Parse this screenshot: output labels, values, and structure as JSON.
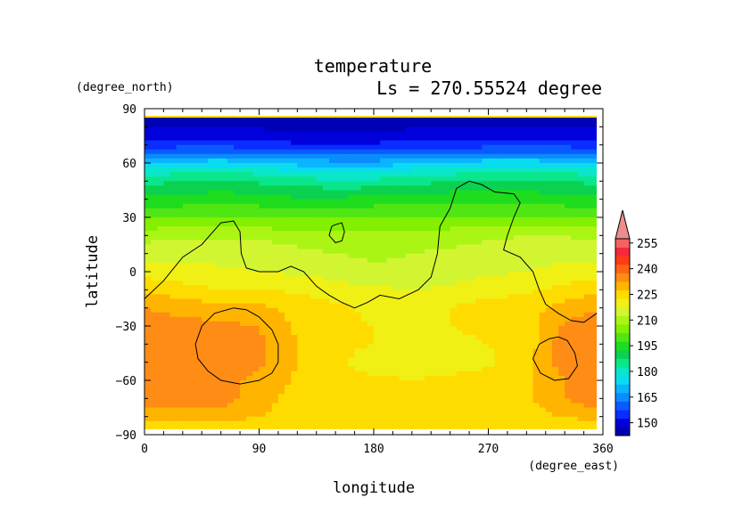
{
  "chart_data": {
    "type": "heatmap",
    "title": "temperature",
    "subtitle": "Ls = 270.55524 degree",
    "xlabel": "longitude",
    "ylabel": "latitude",
    "x_units": "(degree_east)",
    "y_units": "(degree_north)",
    "xlim": [
      0,
      360
    ],
    "ylim": [
      -90,
      90
    ],
    "x_ticks": [
      "0",
      "90",
      "180",
      "270",
      "360"
    ],
    "y_ticks": [
      "90",
      "60",
      "30",
      "0",
      "−30",
      "−60",
      "−90"
    ],
    "colorbar": {
      "labels": [
        "255",
        "240",
        "225",
        "210",
        "195",
        "180",
        "165",
        "150"
      ],
      "bins": [
        {
          "t": 145,
          "color": "#0000b4"
        },
        {
          "t": 150,
          "color": "#0000dc"
        },
        {
          "t": 155,
          "color": "#0a2dff"
        },
        {
          "t": 160,
          "color": "#0a5aff"
        },
        {
          "t": 165,
          "color": "#0a8cff"
        },
        {
          "t": 170,
          "color": "#0ab4ff"
        },
        {
          "t": 175,
          "color": "#0adcf0"
        },
        {
          "t": 180,
          "color": "#0ae6c8"
        },
        {
          "t": 185,
          "color": "#0ae68c"
        },
        {
          "t": 190,
          "color": "#0ad250"
        },
        {
          "t": 195,
          "color": "#1edc1e"
        },
        {
          "t": 200,
          "color": "#50e614"
        },
        {
          "t": 205,
          "color": "#82f000"
        },
        {
          "t": 210,
          "color": "#aaf514"
        },
        {
          "t": 215,
          "color": "#d2f532"
        },
        {
          "t": 220,
          "color": "#f0f014"
        },
        {
          "t": 225,
          "color": "#ffdc00"
        },
        {
          "t": 230,
          "color": "#ffb400"
        },
        {
          "t": 235,
          "color": "#ff8c14"
        },
        {
          "t": 240,
          "color": "#ff6414"
        },
        {
          "t": 245,
          "color": "#ff3c14"
        },
        {
          "t": 250,
          "color": "#f5283c"
        },
        {
          "t": 255,
          "color": "#f06464"
        },
        {
          "t": 260,
          "color": "#f08c8c"
        }
      ]
    },
    "field": {
      "lat": [
        85,
        75,
        70,
        65,
        60,
        55,
        50,
        40,
        30,
        20,
        10,
        0,
        -10,
        -20,
        -30,
        -40,
        -50,
        -60,
        -70,
        -80,
        -85
      ],
      "lon": [
        0,
        30,
        60,
        90,
        120,
        150,
        180,
        210,
        240,
        270,
        300,
        330,
        360
      ],
      "temperature": [
        [
          147,
          147,
          147,
          147,
          147,
          147,
          147,
          147,
          147,
          147,
          147,
          147,
          147
        ],
        [
          152,
          153,
          153,
          152,
          151,
          151,
          151,
          152,
          152,
          153,
          153,
          153,
          152
        ],
        [
          157,
          158,
          158,
          157,
          156,
          156,
          156,
          157,
          157,
          158,
          158,
          158,
          157
        ],
        [
          165,
          167,
          167,
          166,
          164,
          163,
          163,
          164,
          165,
          167,
          167,
          167,
          165
        ],
        [
          175,
          177,
          178,
          176,
          173,
          172,
          172,
          174,
          176,
          178,
          178,
          177,
          175
        ],
        [
          182,
          184,
          185,
          183,
          181,
          180,
          180,
          182,
          183,
          185,
          185,
          184,
          182
        ],
        [
          188,
          190,
          191,
          189,
          187,
          186,
          186,
          188,
          190,
          191,
          191,
          190,
          188
        ],
        [
          196,
          197,
          198,
          197,
          196,
          196,
          197,
          197,
          198,
          198,
          198,
          197,
          196
        ],
        [
          204,
          205,
          205,
          205,
          204,
          205,
          205,
          205,
          205,
          205,
          205,
          205,
          204
        ],
        [
          213,
          214,
          214,
          214,
          212,
          211,
          211,
          212,
          213,
          214,
          215,
          215,
          213
        ],
        [
          218,
          218,
          218,
          218,
          217,
          215,
          214,
          215,
          216,
          217,
          218,
          218,
          218
        ],
        [
          223,
          222,
          221,
          220,
          219,
          218,
          216,
          216,
          217,
          219,
          220,
          222,
          223
        ],
        [
          229,
          227,
          225,
          225,
          224,
          222,
          221,
          220,
          221,
          223,
          224,
          226,
          229
        ],
        [
          235,
          233,
          232,
          231,
          228,
          226,
          224,
          224,
          225,
          227,
          228,
          232,
          235
        ],
        [
          238,
          237,
          236,
          235,
          229,
          226,
          225,
          224,
          225,
          226,
          227,
          236,
          238
        ],
        [
          240,
          238,
          237,
          236,
          230,
          226,
          225,
          224,
          224,
          225,
          227,
          238,
          240
        ],
        [
          239,
          239,
          237,
          236,
          230,
          226,
          223,
          222,
          223,
          224,
          228,
          238,
          239
        ],
        [
          239,
          238,
          236,
          234,
          229,
          226,
          226,
          225,
          226,
          227,
          229,
          235,
          239
        ],
        [
          239,
          239,
          238,
          232,
          228,
          227,
          227,
          227,
          228,
          228,
          229,
          235,
          239
        ],
        [
          232,
          232,
          232,
          230,
          228,
          228,
          228,
          228,
          228,
          228,
          228,
          230,
          232
        ],
        [
          228,
          228,
          228,
          228,
          228,
          228,
          228,
          228,
          228,
          228,
          228,
          228,
          228
        ]
      ]
    },
    "topography_contours": [
      {
        "name": "dichotomy-boundary",
        "points": [
          [
            0,
            -15
          ],
          [
            15,
            -5
          ],
          [
            30,
            8
          ],
          [
            45,
            15
          ],
          [
            60,
            27
          ],
          [
            70,
            28
          ],
          [
            75,
            22
          ],
          [
            76,
            10
          ],
          [
            80,
            2
          ],
          [
            90,
            0
          ],
          [
            105,
            0
          ],
          [
            115,
            3
          ],
          [
            125,
            0
          ],
          [
            135,
            -8
          ],
          [
            145,
            -13
          ],
          [
            155,
            -17
          ],
          [
            165,
            -20
          ],
          [
            175,
            -17
          ],
          [
            185,
            -13
          ],
          [
            200,
            -15
          ],
          [
            215,
            -10
          ],
          [
            225,
            -3
          ],
          [
            230,
            10
          ],
          [
            232,
            25
          ],
          [
            240,
            35
          ],
          [
            245,
            46
          ],
          [
            255,
            50
          ],
          [
            265,
            48
          ],
          [
            275,
            44
          ],
          [
            290,
            43
          ],
          [
            295,
            38
          ],
          [
            290,
            30
          ],
          [
            285,
            20
          ],
          [
            282,
            12
          ],
          [
            295,
            8
          ],
          [
            305,
            0
          ],
          [
            310,
            -10
          ],
          [
            315,
            -18
          ],
          [
            325,
            -23
          ],
          [
            335,
            -27
          ],
          [
            345,
            -28
          ],
          [
            355,
            -23
          ],
          [
            360,
            -20
          ]
        ]
      },
      {
        "name": "hellas-basin",
        "points": [
          [
            70,
            -20
          ],
          [
            80,
            -21
          ],
          [
            90,
            -25
          ],
          [
            100,
            -32
          ],
          [
            105,
            -40
          ],
          [
            105,
            -50
          ],
          [
            100,
            -56
          ],
          [
            90,
            -60
          ],
          [
            75,
            -62
          ],
          [
            60,
            -60
          ],
          [
            50,
            -55
          ],
          [
            42,
            -48
          ],
          [
            40,
            -40
          ],
          [
            45,
            -30
          ],
          [
            55,
            -23
          ],
          [
            70,
            -20
          ]
        ]
      },
      {
        "name": "argyre-basin",
        "points": [
          [
            325,
            -36
          ],
          [
            332,
            -38
          ],
          [
            338,
            -45
          ],
          [
            340,
            -52
          ],
          [
            333,
            -59
          ],
          [
            322,
            -60
          ],
          [
            311,
            -56
          ],
          [
            305,
            -48
          ],
          [
            310,
            -40
          ],
          [
            318,
            -37
          ],
          [
            325,
            -36
          ]
        ]
      },
      {
        "name": "small-crater",
        "points": [
          [
            150,
            26
          ],
          [
            155,
            27
          ],
          [
            157,
            22
          ],
          [
            155,
            17
          ],
          [
            150,
            16
          ],
          [
            145,
            20
          ],
          [
            147,
            25
          ],
          [
            150,
            26
          ]
        ]
      }
    ]
  }
}
